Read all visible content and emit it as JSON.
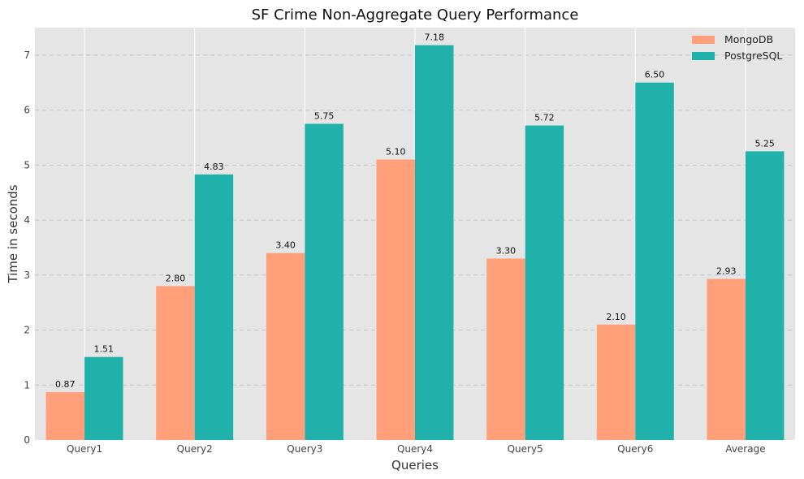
{
  "chart_data": {
    "type": "bar",
    "title": "SF Crime Non-Aggregate Query Performance",
    "xlabel": "Queries",
    "ylabel": "Time in seconds",
    "categories": [
      "Query1",
      "Query2",
      "Query3",
      "Query4",
      "Query5",
      "Query6",
      "Average"
    ],
    "series": [
      {
        "name": "MongoDB",
        "color": "#FFA07A",
        "values": [
          0.87,
          2.8,
          3.4,
          5.1,
          3.3,
          2.1,
          2.93
        ],
        "labels": [
          "0.87",
          "2.80",
          "3.40",
          "5.10",
          "3.30",
          "2.10",
          "2.93"
        ]
      },
      {
        "name": "PostgreSQL",
        "color": "#20B2AA",
        "values": [
          1.51,
          4.83,
          5.75,
          7.18,
          5.72,
          6.5,
          5.25
        ],
        "labels": [
          "1.51",
          "4.83",
          "5.75",
          "7.18",
          "5.72",
          "6.50",
          "5.25"
        ]
      }
    ],
    "ylim": [
      0,
      7.5
    ],
    "yticks": [
      "0",
      "1",
      "2",
      "3",
      "4",
      "5",
      "6",
      "7"
    ],
    "grid": true,
    "legend": "top-right",
    "background": "#E5E5E5"
  }
}
